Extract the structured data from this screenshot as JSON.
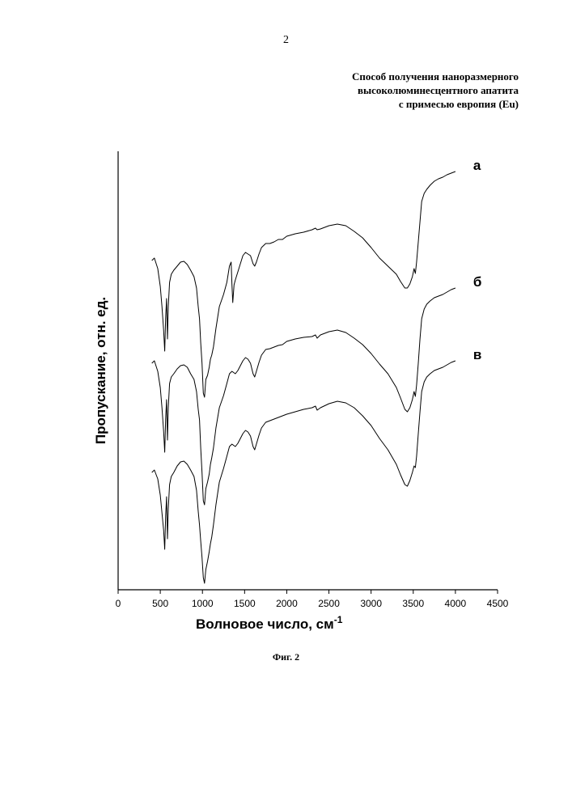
{
  "page": {
    "number": "2",
    "title_lines": [
      "Способ получения наноразмерного",
      "высоколюминесцентного апатита",
      "с примесью европия (Eu)"
    ],
    "caption": "Фиг. 2"
  },
  "chart_data": {
    "type": "line",
    "xlabel": "Волновое число, см",
    "xlabel_superscript": "-1",
    "ylabel": "Пропускание, отн. ед.",
    "xlim": [
      0,
      4500
    ],
    "xticks": [
      "0",
      "500",
      "1000",
      "1500",
      "2000",
      "2500",
      "3000",
      "3500",
      "4000",
      "4500"
    ],
    "yticks_shown": false,
    "grid": false,
    "y_units": "relative, series vertically offset (0 = deepest absorption of lowest series)",
    "series": [
      {
        "name": "а",
        "points": [
          [
            400,
            402
          ],
          [
            430,
            405
          ],
          [
            470,
            392
          ],
          [
            500,
            370
          ],
          [
            520,
            345
          ],
          [
            540,
            315
          ],
          [
            553,
            290
          ],
          [
            563,
            330
          ],
          [
            575,
            355
          ],
          [
            585,
            305
          ],
          [
            595,
            345
          ],
          [
            610,
            375
          ],
          [
            630,
            385
          ],
          [
            660,
            390
          ],
          [
            700,
            395
          ],
          [
            740,
            400
          ],
          [
            780,
            401
          ],
          [
            820,
            397
          ],
          [
            860,
            390
          ],
          [
            900,
            382
          ],
          [
            930,
            368
          ],
          [
            950,
            345
          ],
          [
            965,
            330
          ],
          [
            980,
            300
          ],
          [
            995,
            275
          ],
          [
            1010,
            238
          ],
          [
            1025,
            233
          ],
          [
            1040,
            255
          ],
          [
            1060,
            260
          ],
          [
            1080,
            270
          ],
          [
            1095,
            280
          ],
          [
            1110,
            285
          ],
          [
            1130,
            295
          ],
          [
            1160,
            318
          ],
          [
            1200,
            345
          ],
          [
            1250,
            360
          ],
          [
            1290,
            375
          ],
          [
            1320,
            395
          ],
          [
            1340,
            400
          ],
          [
            1350,
            372
          ],
          [
            1360,
            350
          ],
          [
            1375,
            372
          ],
          [
            1390,
            378
          ],
          [
            1420,
            388
          ],
          [
            1450,
            398
          ],
          [
            1480,
            408
          ],
          [
            1510,
            412
          ],
          [
            1540,
            410
          ],
          [
            1570,
            408
          ],
          [
            1600,
            398
          ],
          [
            1620,
            395
          ],
          [
            1640,
            400
          ],
          [
            1670,
            410
          ],
          [
            1700,
            418
          ],
          [
            1750,
            423
          ],
          [
            1800,
            423
          ],
          [
            1850,
            425
          ],
          [
            1900,
            428
          ],
          [
            1950,
            428
          ],
          [
            2000,
            432
          ],
          [
            2100,
            435
          ],
          [
            2200,
            437
          ],
          [
            2300,
            440
          ],
          [
            2340,
            442
          ],
          [
            2360,
            440
          ],
          [
            2400,
            441
          ],
          [
            2500,
            445
          ],
          [
            2600,
            447
          ],
          [
            2700,
            445
          ],
          [
            2800,
            438
          ],
          [
            2900,
            430
          ],
          [
            3000,
            418
          ],
          [
            3100,
            405
          ],
          [
            3200,
            395
          ],
          [
            3300,
            385
          ],
          [
            3350,
            376
          ],
          [
            3400,
            368
          ],
          [
            3430,
            368
          ],
          [
            3460,
            373
          ],
          [
            3490,
            382
          ],
          [
            3510,
            392
          ],
          [
            3525,
            386
          ],
          [
            3540,
            400
          ],
          [
            3560,
            425
          ],
          [
            3580,
            450
          ],
          [
            3600,
            475
          ],
          [
            3630,
            485
          ],
          [
            3660,
            490
          ],
          [
            3700,
            495
          ],
          [
            3750,
            500
          ],
          [
            3800,
            503
          ],
          [
            3850,
            505
          ],
          [
            3900,
            508
          ],
          [
            3950,
            510
          ],
          [
            4000,
            512
          ]
        ]
      },
      {
        "name": "б",
        "points": [
          [
            400,
            275
          ],
          [
            430,
            278
          ],
          [
            470,
            265
          ],
          [
            500,
            245
          ],
          [
            520,
            220
          ],
          [
            540,
            190
          ],
          [
            553,
            165
          ],
          [
            563,
            205
          ],
          [
            575,
            230
          ],
          [
            585,
            180
          ],
          [
            595,
            220
          ],
          [
            610,
            250
          ],
          [
            630,
            258
          ],
          [
            660,
            262
          ],
          [
            700,
            268
          ],
          [
            740,
            272
          ],
          [
            780,
            273
          ],
          [
            820,
            270
          ],
          [
            860,
            262
          ],
          [
            900,
            255
          ],
          [
            930,
            240
          ],
          [
            950,
            218
          ],
          [
            965,
            205
          ],
          [
            980,
            170
          ],
          [
            995,
            140
          ],
          [
            1010,
            105
          ],
          [
            1025,
            100
          ],
          [
            1040,
            120
          ],
          [
            1060,
            128
          ],
          [
            1080,
            138
          ],
          [
            1095,
            150
          ],
          [
            1110,
            158
          ],
          [
            1130,
            170
          ],
          [
            1160,
            195
          ],
          [
            1200,
            220
          ],
          [
            1250,
            235
          ],
          [
            1290,
            250
          ],
          [
            1320,
            262
          ],
          [
            1350,
            265
          ],
          [
            1390,
            262
          ],
          [
            1420,
            266
          ],
          [
            1450,
            272
          ],
          [
            1480,
            278
          ],
          [
            1510,
            282
          ],
          [
            1540,
            280
          ],
          [
            1570,
            275
          ],
          [
            1600,
            262
          ],
          [
            1620,
            258
          ],
          [
            1640,
            265
          ],
          [
            1670,
            276
          ],
          [
            1700,
            285
          ],
          [
            1750,
            292
          ],
          [
            1800,
            293
          ],
          [
            1850,
            295
          ],
          [
            1900,
            297
          ],
          [
            1950,
            298
          ],
          [
            2000,
            302
          ],
          [
            2100,
            305
          ],
          [
            2200,
            307
          ],
          [
            2300,
            308
          ],
          [
            2340,
            310
          ],
          [
            2360,
            306
          ],
          [
            2400,
            310
          ],
          [
            2500,
            314
          ],
          [
            2600,
            316
          ],
          [
            2700,
            313
          ],
          [
            2800,
            306
          ],
          [
            2900,
            298
          ],
          [
            3000,
            287
          ],
          [
            3100,
            274
          ],
          [
            3200,
            262
          ],
          [
            3300,
            245
          ],
          [
            3350,
            232
          ],
          [
            3400,
            218
          ],
          [
            3430,
            215
          ],
          [
            3460,
            220
          ],
          [
            3490,
            230
          ],
          [
            3510,
            240
          ],
          [
            3525,
            234
          ],
          [
            3540,
            248
          ],
          [
            3560,
            275
          ],
          [
            3580,
            305
          ],
          [
            3600,
            330
          ],
          [
            3630,
            342
          ],
          [
            3660,
            348
          ],
          [
            3700,
            352
          ],
          [
            3750,
            356
          ],
          [
            3800,
            358
          ],
          [
            3850,
            360
          ],
          [
            3900,
            363
          ],
          [
            3950,
            366
          ],
          [
            4000,
            368
          ]
        ]
      },
      {
        "name": "в",
        "points": [
          [
            400,
            140
          ],
          [
            430,
            143
          ],
          [
            470,
            132
          ],
          [
            500,
            112
          ],
          [
            520,
            90
          ],
          [
            540,
            68
          ],
          [
            553,
            45
          ],
          [
            563,
            85
          ],
          [
            575,
            110
          ],
          [
            585,
            58
          ],
          [
            595,
            95
          ],
          [
            610,
            125
          ],
          [
            630,
            135
          ],
          [
            660,
            140
          ],
          [
            700,
            148
          ],
          [
            740,
            153
          ],
          [
            780,
            154
          ],
          [
            820,
            150
          ],
          [
            860,
            143
          ],
          [
            900,
            135
          ],
          [
            930,
            118
          ],
          [
            950,
            92
          ],
          [
            965,
            75
          ],
          [
            980,
            55
          ],
          [
            995,
            35
          ],
          [
            1010,
            10
          ],
          [
            1025,
            3
          ],
          [
            1040,
            20
          ],
          [
            1060,
            30
          ],
          [
            1080,
            42
          ],
          [
            1095,
            52
          ],
          [
            1110,
            60
          ],
          [
            1130,
            75
          ],
          [
            1160,
            100
          ],
          [
            1200,
            128
          ],
          [
            1250,
            145
          ],
          [
            1290,
            160
          ],
          [
            1320,
            172
          ],
          [
            1350,
            175
          ],
          [
            1390,
            172
          ],
          [
            1420,
            176
          ],
          [
            1450,
            182
          ],
          [
            1480,
            188
          ],
          [
            1510,
            192
          ],
          [
            1540,
            190
          ],
          [
            1570,
            185
          ],
          [
            1600,
            172
          ],
          [
            1620,
            168
          ],
          [
            1640,
            175
          ],
          [
            1670,
            186
          ],
          [
            1700,
            195
          ],
          [
            1750,
            202
          ],
          [
            1800,
            204
          ],
          [
            1850,
            206
          ],
          [
            1900,
            208
          ],
          [
            1950,
            210
          ],
          [
            2000,
            212
          ],
          [
            2100,
            215
          ],
          [
            2200,
            218
          ],
          [
            2300,
            220
          ],
          [
            2340,
            222
          ],
          [
            2360,
            217
          ],
          [
            2400,
            220
          ],
          [
            2500,
            225
          ],
          [
            2600,
            228
          ],
          [
            2700,
            226
          ],
          [
            2800,
            220
          ],
          [
            2900,
            210
          ],
          [
            3000,
            198
          ],
          [
            3100,
            182
          ],
          [
            3200,
            168
          ],
          [
            3300,
            150
          ],
          [
            3350,
            137
          ],
          [
            3400,
            125
          ],
          [
            3430,
            123
          ],
          [
            3460,
            130
          ],
          [
            3490,
            140
          ],
          [
            3510,
            148
          ],
          [
            3525,
            146
          ],
          [
            3540,
            160
          ],
          [
            3560,
            188
          ],
          [
            3580,
            215
          ],
          [
            3600,
            240
          ],
          [
            3630,
            252
          ],
          [
            3660,
            258
          ],
          [
            3700,
            262
          ],
          [
            3750,
            266
          ],
          [
            3800,
            268
          ],
          [
            3850,
            270
          ],
          [
            3900,
            273
          ],
          [
            3950,
            276
          ],
          [
            4000,
            278
          ]
        ]
      }
    ]
  }
}
